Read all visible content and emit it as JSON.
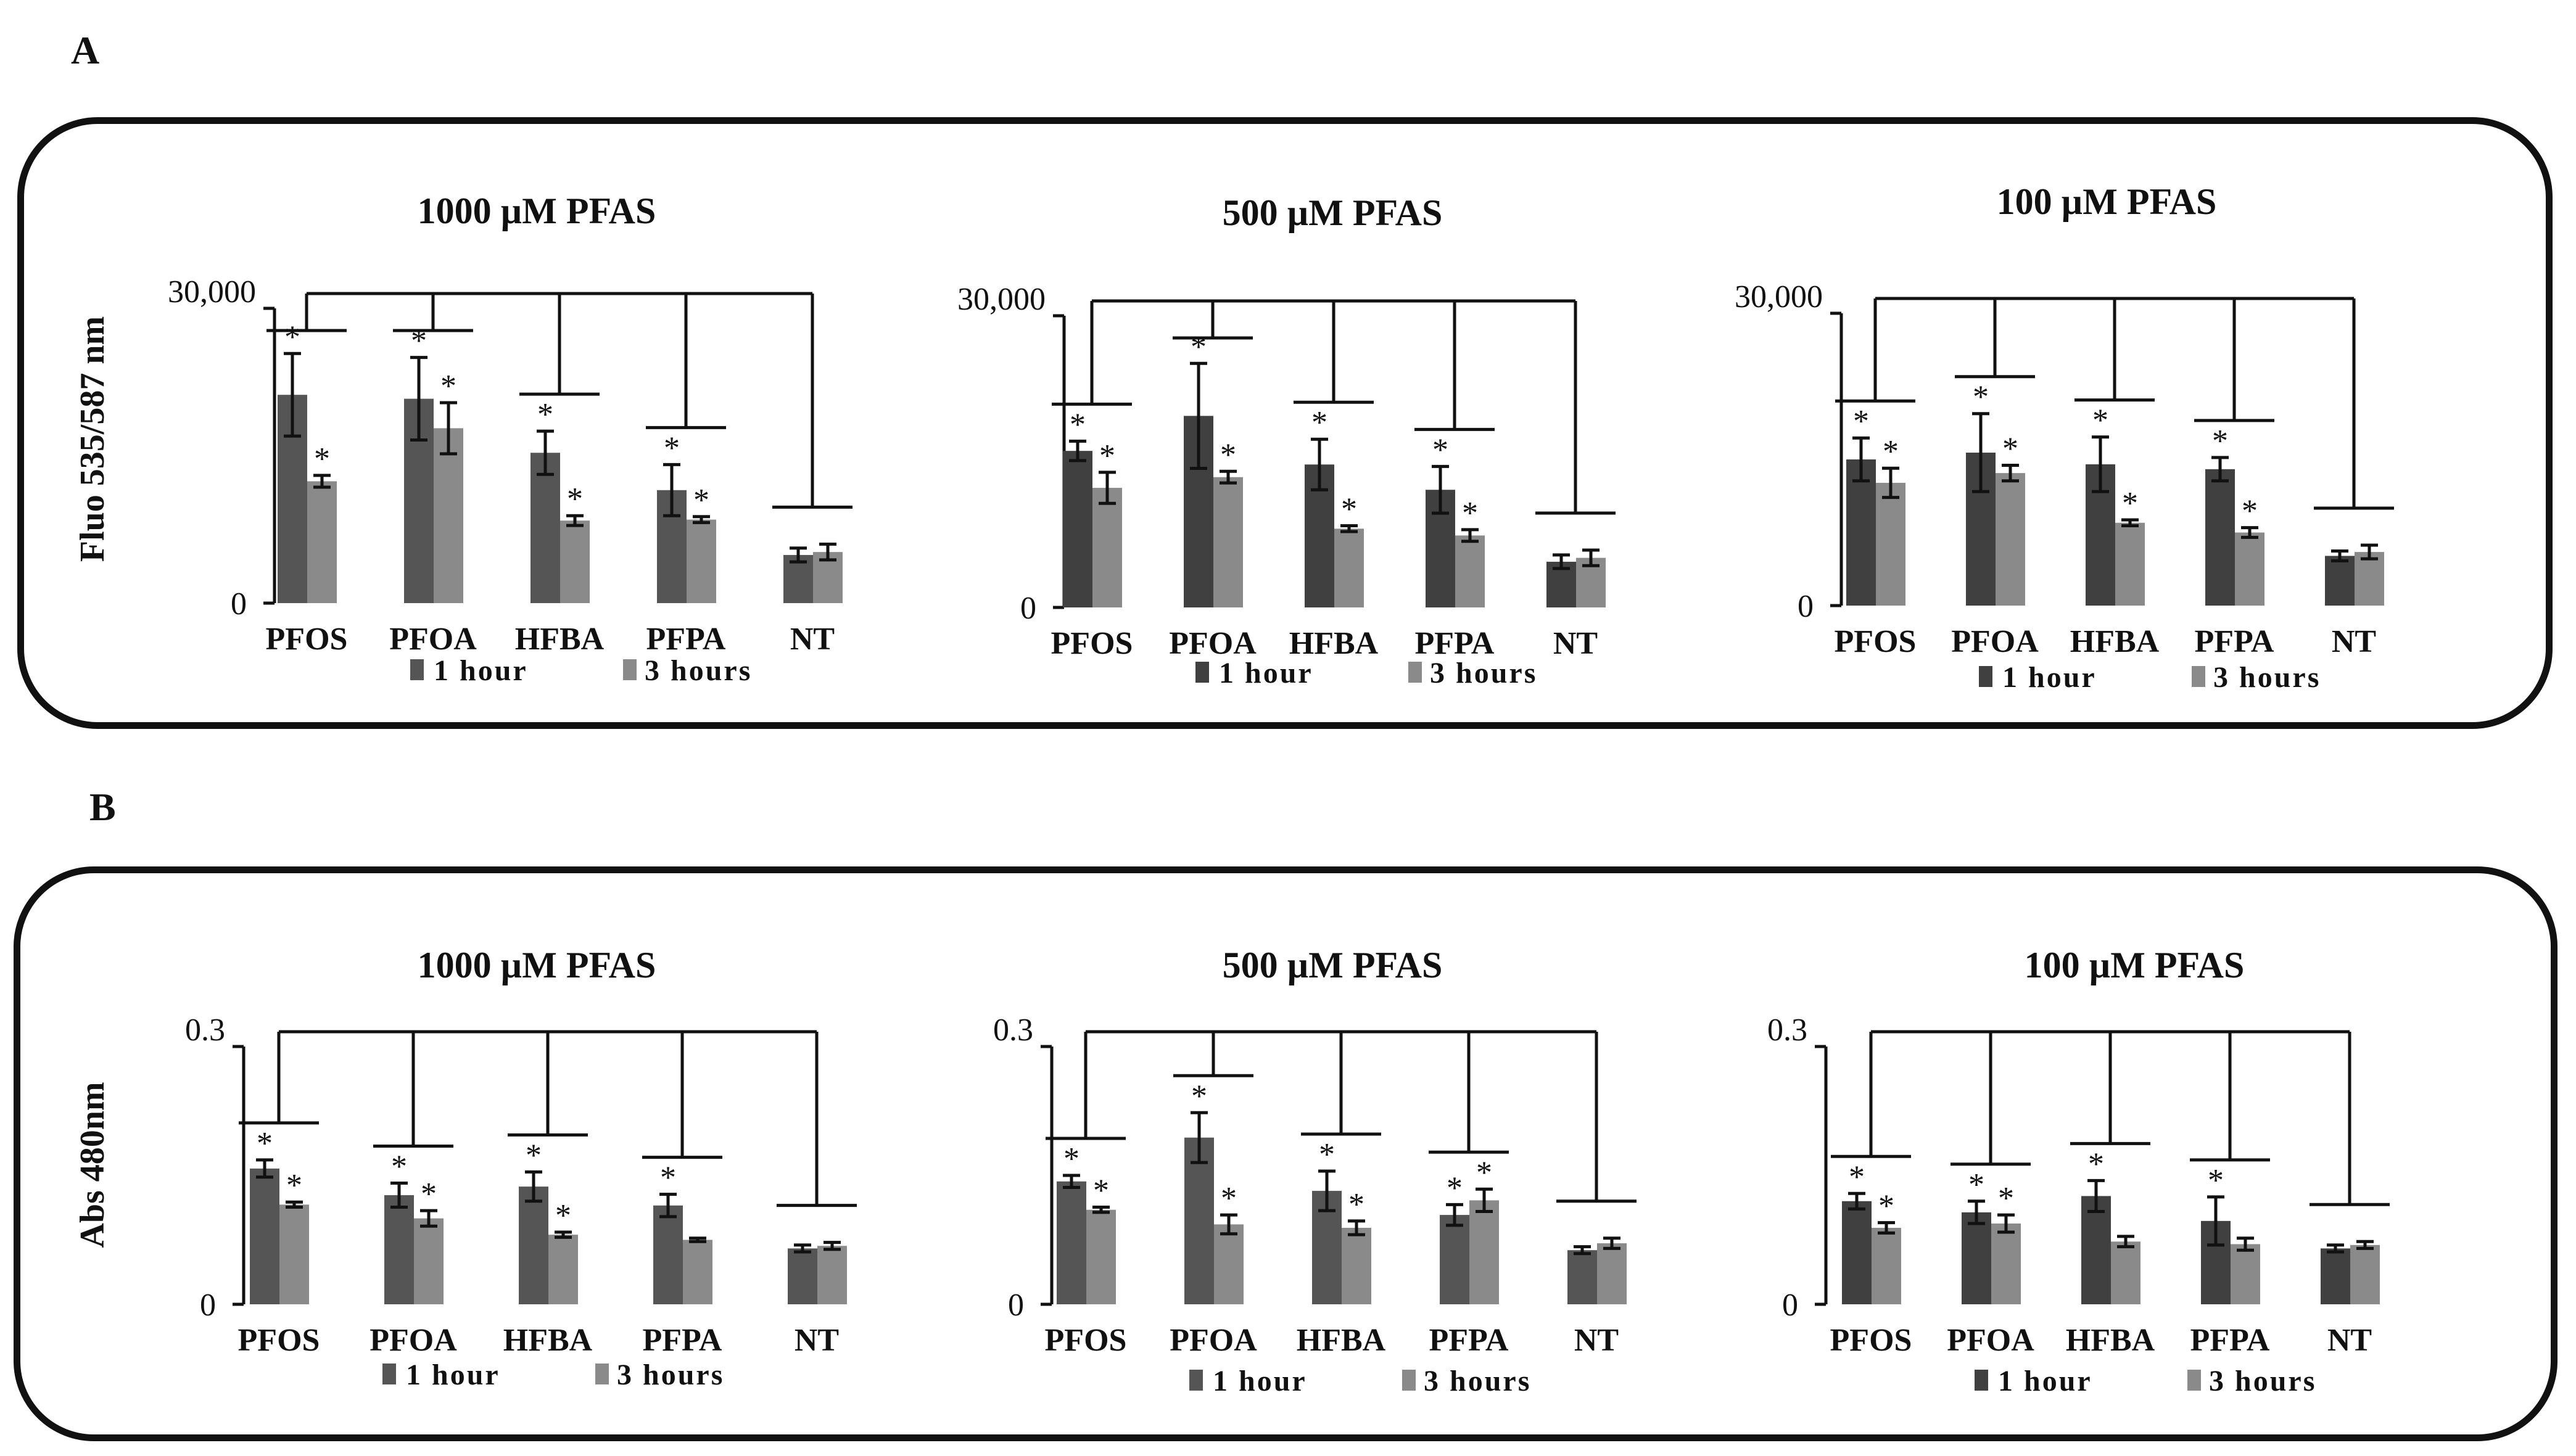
{
  "figure": {
    "panels": [
      {
        "letter": "A",
        "ylabel": "Fluo 535/587 nm"
      },
      {
        "letter": "B",
        "ylabel": "Abs 480nm"
      }
    ]
  },
  "colors": {
    "one_hour": "#555555",
    "one_hour_dark": "#404040",
    "three_hours": "#8a8a8a",
    "axis": "#111111"
  },
  "chart_data": [
    {
      "panel": "A",
      "type": "bar",
      "title": "1000 µM PFAS",
      "ylabel": "Fluo 535/587 nm",
      "xlabel": "",
      "ylim": [
        0,
        30000
      ],
      "yticks": [
        "0",
        "30,000"
      ],
      "categories": [
        "PFOS",
        "PFOA",
        "HFBA",
        "PFPA",
        "NT"
      ],
      "legend": [
        "1 hour",
        "3 hours"
      ],
      "legend_position": "bottom",
      "series": [
        {
          "name": "1 hour",
          "values": [
            21200,
            20800,
            15300,
            11500,
            4900
          ],
          "errors": [
            4200,
            4200,
            2200,
            2600,
            700
          ],
          "significant": [
            true,
            true,
            true,
            true,
            false
          ]
        },
        {
          "name": "3 hours",
          "values": [
            12400,
            17800,
            8400,
            8500,
            5200
          ],
          "errors": [
            600,
            2600,
            500,
            300,
            800
          ],
          "significant": [
            true,
            true,
            true,
            true,
            false
          ]
        }
      ]
    },
    {
      "panel": "A",
      "type": "bar",
      "title": "500 µM PFAS",
      "ylabel": "Fluo 535/587 nm",
      "xlabel": "",
      "ylim": [
        0,
        30000
      ],
      "yticks": [
        "0",
        "30,000"
      ],
      "categories": [
        "PFOS",
        "PFOA",
        "HFBA",
        "PFPA",
        "NT"
      ],
      "legend": [
        "1 hour",
        "3 hours"
      ],
      "legend_position": "bottom",
      "series": [
        {
          "name": "1 hour",
          "values": [
            16100,
            19700,
            14700,
            12100,
            4700
          ],
          "errors": [
            1000,
            5400,
            2600,
            2400,
            700
          ],
          "significant": [
            true,
            true,
            true,
            true,
            false
          ]
        },
        {
          "name": "3 hours",
          "values": [
            12300,
            13400,
            8100,
            7400,
            5100
          ],
          "errors": [
            1600,
            600,
            300,
            600,
            800
          ],
          "significant": [
            true,
            true,
            true,
            true,
            false
          ]
        }
      ]
    },
    {
      "panel": "A",
      "type": "bar",
      "title": "100 µM PFAS",
      "ylabel": "Fluo 535/587 nm",
      "xlabel": "",
      "ylim": [
        0,
        30000
      ],
      "yticks": [
        "0",
        "30,000"
      ],
      "categories": [
        "PFOS",
        "PFOA",
        "HFBA",
        "PFPA",
        "NT"
      ],
      "legend": [
        "1 hour",
        "3 hours"
      ],
      "legend_position": "bottom",
      "series": [
        {
          "name": "1 hour",
          "values": [
            15000,
            15700,
            14500,
            14000,
            5100
          ],
          "errors": [
            2200,
            4000,
            2800,
            1200,
            500
          ],
          "significant": [
            true,
            true,
            true,
            true,
            false
          ]
        },
        {
          "name": "3 hours",
          "values": [
            12600,
            13600,
            8500,
            7500,
            5500
          ],
          "errors": [
            1500,
            800,
            300,
            500,
            700
          ],
          "significant": [
            true,
            true,
            true,
            true,
            false
          ]
        }
      ]
    },
    {
      "panel": "B",
      "type": "bar",
      "title": "1000 µM PFAS",
      "ylabel": "Abs 480nm",
      "xlabel": "",
      "ylim": [
        0,
        0.3
      ],
      "yticks": [
        "0",
        "0.3"
      ],
      "categories": [
        "PFOS",
        "PFOA",
        "HFBA",
        "PFPA",
        "NT"
      ],
      "legend": [
        "1 hour",
        "3 hours"
      ],
      "legend_position": "bottom",
      "series": [
        {
          "name": "1 hour",
          "values": [
            0.158,
            0.127,
            0.137,
            0.115,
            0.065
          ],
          "errors": [
            0.01,
            0.014,
            0.017,
            0.013,
            0.004
          ],
          "significant": [
            true,
            true,
            true,
            true,
            false
          ]
        },
        {
          "name": "3 hours",
          "values": [
            0.116,
            0.1,
            0.081,
            0.075,
            0.068
          ],
          "errors": [
            0.003,
            0.009,
            0.003,
            0.002,
            0.004
          ],
          "significant": [
            true,
            true,
            true,
            false,
            false
          ]
        }
      ]
    },
    {
      "panel": "B",
      "type": "bar",
      "title": "500 µM PFAS",
      "ylabel": "Abs 480nm",
      "xlabel": "",
      "ylim": [
        0,
        0.3
      ],
      "yticks": [
        "0",
        "0.3"
      ],
      "categories": [
        "PFOS",
        "PFOA",
        "HFBA",
        "PFPA",
        "NT"
      ],
      "legend": [
        "1 hour",
        "3 hours"
      ],
      "legend_position": "bottom",
      "series": [
        {
          "name": "1 hour",
          "values": [
            0.143,
            0.194,
            0.132,
            0.104,
            0.063
          ],
          "errors": [
            0.007,
            0.029,
            0.023,
            0.012,
            0.004
          ],
          "significant": [
            true,
            true,
            true,
            true,
            false
          ]
        },
        {
          "name": "3 hours",
          "values": [
            0.11,
            0.093,
            0.089,
            0.121,
            0.071
          ],
          "errors": [
            0.003,
            0.011,
            0.008,
            0.013,
            0.006
          ],
          "significant": [
            true,
            true,
            true,
            true,
            false
          ]
        }
      ]
    },
    {
      "panel": "B",
      "type": "bar",
      "title": "100 µM PFAS",
      "ylabel": "Abs 480nm",
      "xlabel": "",
      "ylim": [
        0,
        0.3
      ],
      "yticks": [
        "0",
        "0.3"
      ],
      "categories": [
        "PFOS",
        "PFOA",
        "HFBA",
        "PFPA",
        "NT"
      ],
      "legend": [
        "1 hour",
        "3 hours"
      ],
      "legend_position": "bottom",
      "series": [
        {
          "name": "1 hour",
          "values": [
            0.12,
            0.107,
            0.126,
            0.097,
            0.065
          ],
          "errors": [
            0.009,
            0.013,
            0.018,
            0.028,
            0.004
          ],
          "significant": [
            true,
            true,
            true,
            true,
            false
          ]
        },
        {
          "name": "3 hours",
          "values": [
            0.089,
            0.094,
            0.073,
            0.07,
            0.069
          ],
          "errors": [
            0.006,
            0.01,
            0.006,
            0.007,
            0.004
          ],
          "significant": [
            true,
            true,
            false,
            false,
            false
          ]
        }
      ]
    }
  ]
}
